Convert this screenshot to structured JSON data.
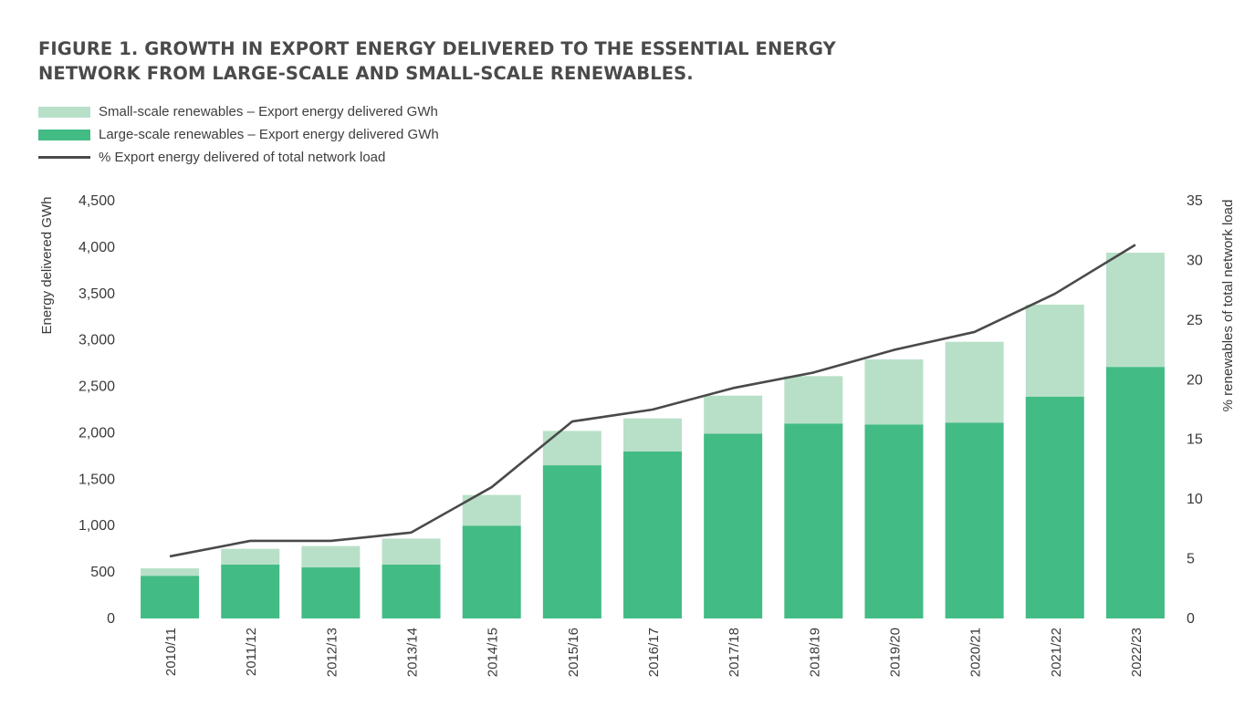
{
  "title_line1": "FIGURE 1. GROWTH IN EXPORT ENERGY DELIVERED TO THE ESSENTIAL ENERGY",
  "title_line2": "NETWORK FROM LARGE-SCALE AND SMALL-SCALE RENEWABLES.",
  "legend": [
    {
      "label": "Small-scale renewables – Export energy delivered GWh",
      "color": "#b8e0c8",
      "kind": "bar"
    },
    {
      "label": "Large-scale renewables – Export energy delivered GWh",
      "color": "#43bb84",
      "kind": "bar"
    },
    {
      "label": "% Export energy delivered of total network load",
      "color": "#4a4a4a",
      "kind": "line"
    }
  ],
  "chart_data": {
    "type": "bar",
    "stacked": true,
    "categories": [
      "2010/11",
      "2011/12",
      "2012/13",
      "2013/14",
      "2014/15",
      "2015/16",
      "2016/17",
      "2017/18",
      "2018/19",
      "2019/20",
      "2020/21",
      "2021/22",
      "2022/23"
    ],
    "series": [
      {
        "name": "Large-scale renewables – Export energy delivered GWh",
        "type": "bar",
        "axis": "left",
        "color": "#43bb84",
        "values": [
          460,
          580,
          550,
          580,
          1000,
          1650,
          1800,
          1990,
          2100,
          2090,
          2110,
          2390,
          2710
        ]
      },
      {
        "name": "Small-scale renewables – Export energy delivered GWh",
        "type": "bar",
        "axis": "left",
        "color": "#b8e0c8",
        "values": [
          80,
          170,
          230,
          280,
          330,
          370,
          355,
          410,
          510,
          700,
          870,
          990,
          1230
        ]
      },
      {
        "name": "% Export energy delivered of total network load",
        "type": "line",
        "axis": "right",
        "color": "#4a4a4a",
        "values": [
          5.2,
          6.5,
          6.5,
          7.2,
          11.0,
          16.5,
          17.5,
          19.3,
          20.6,
          22.5,
          24.0,
          27.2,
          31.3
        ]
      }
    ],
    "ylabel": "Energy delivered GWh",
    "y2label": "% renewables of total network load",
    "ylim": [
      0,
      4500
    ],
    "y2lim": [
      0,
      35
    ],
    "yticks": [
      0,
      500,
      1000,
      1500,
      2000,
      2500,
      3000,
      3500,
      4000,
      4500
    ],
    "yticklabels": [
      "0",
      "500",
      "1,000",
      "1,500",
      "2,000",
      "2,500",
      "3,000",
      "3,500",
      "4,000",
      "4,500"
    ],
    "y2ticks": [
      0,
      5,
      10,
      15,
      20,
      25,
      30,
      35
    ],
    "y2ticklabels": [
      "0",
      "5",
      "10",
      "15",
      "20",
      "25",
      "30",
      "35"
    ],
    "grid": false,
    "legend_position": "top-left"
  }
}
